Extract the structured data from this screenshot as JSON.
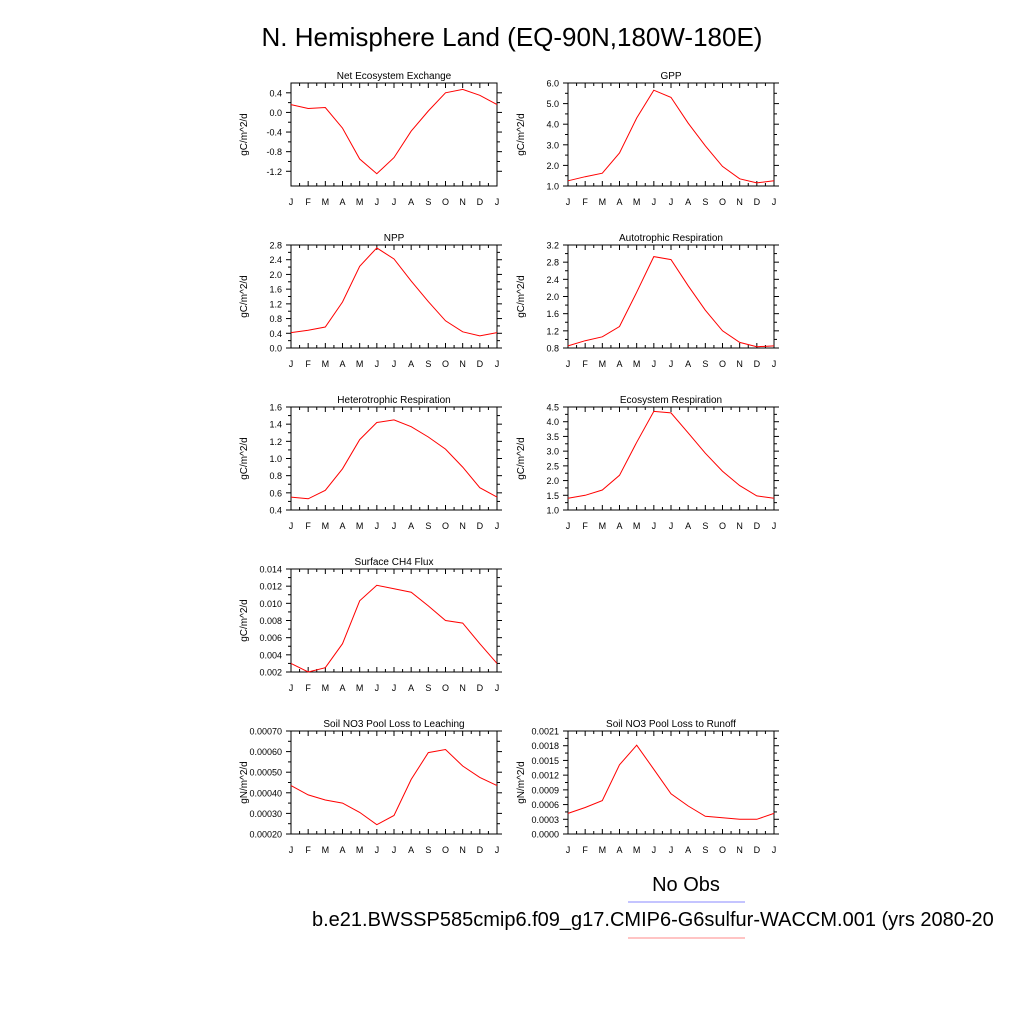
{
  "figure": {
    "title": "N. Hemisphere Land (EQ-90N,180W-180E)",
    "legend_obs_label": "No Obs",
    "legend_obs_color": "#8888ff",
    "legend_case_label": "b.e21.BWSSP585cmip6.f09_g17.CMIP6-G6sulfur-WACCM.001 (yrs 2080-20",
    "legend_case_color": "#ff8888",
    "line_color": "#ff0000"
  },
  "chart_data": [
    {
      "type": "line",
      "title": "Net Ecosystem Exchange",
      "ylabel": "gC/m^2/d",
      "x": [
        "J",
        "F",
        "M",
        "A",
        "M",
        "J",
        "J",
        "A",
        "S",
        "O",
        "N",
        "D",
        "J"
      ],
      "ylim": [
        -1.5,
        0.6
      ],
      "yticks": [
        -1.2,
        -0.8,
        -0.4,
        0.0,
        0.4
      ],
      "ytick_labels": [
        "-1.2",
        "-0.8",
        "-0.4",
        "0.0",
        "0.4"
      ],
      "values": [
        0.16,
        0.08,
        0.1,
        -0.32,
        -0.95,
        -1.25,
        -0.92,
        -0.38,
        0.03,
        0.4,
        0.47,
        0.35,
        0.16
      ]
    },
    {
      "type": "line",
      "title": "GPP",
      "ylabel": "gC/m^2/d",
      "x": [
        "J",
        "F",
        "M",
        "A",
        "M",
        "J",
        "J",
        "A",
        "S",
        "O",
        "N",
        "D",
        "J"
      ],
      "ylim": [
        1.0,
        6.0
      ],
      "yticks": [
        1.0,
        2.0,
        3.0,
        4.0,
        5.0,
        6.0
      ],
      "ytick_labels": [
        "1.0",
        "2.0",
        "3.0",
        "4.0",
        "5.0",
        "6.0"
      ],
      "values": [
        1.25,
        1.45,
        1.62,
        2.6,
        4.3,
        5.65,
        5.3,
        4.05,
        2.95,
        1.95,
        1.35,
        1.15,
        1.25
      ]
    },
    {
      "type": "line",
      "title": "NPP",
      "ylabel": "gC/m^2/d",
      "x": [
        "J",
        "F",
        "M",
        "A",
        "M",
        "J",
        "J",
        "A",
        "S",
        "O",
        "N",
        "D",
        "J"
      ],
      "ylim": [
        0.0,
        2.8
      ],
      "yticks": [
        0.0,
        0.4,
        0.8,
        1.2,
        1.6,
        2.0,
        2.4,
        2.8
      ],
      "ytick_labels": [
        "0.0",
        "0.4",
        "0.8",
        "1.2",
        "1.6",
        "2.0",
        "2.4",
        "2.8"
      ],
      "values": [
        0.42,
        0.48,
        0.57,
        1.25,
        2.22,
        2.72,
        2.42,
        1.82,
        1.26,
        0.74,
        0.44,
        0.33,
        0.42
      ]
    },
    {
      "type": "line",
      "title": "Autotrophic Respiration",
      "ylabel": "gC/m^2/d",
      "x": [
        "J",
        "F",
        "M",
        "A",
        "M",
        "J",
        "J",
        "A",
        "S",
        "O",
        "N",
        "D",
        "J"
      ],
      "ylim": [
        0.8,
        3.2
      ],
      "yticks": [
        0.8,
        1.2,
        1.6,
        2.0,
        2.4,
        2.8,
        3.2
      ],
      "ytick_labels": [
        "0.8",
        "1.2",
        "1.6",
        "2.0",
        "2.4",
        "2.8",
        "3.2"
      ],
      "values": [
        0.85,
        0.97,
        1.06,
        1.3,
        2.1,
        2.93,
        2.86,
        2.25,
        1.68,
        1.2,
        0.93,
        0.83,
        0.85
      ]
    },
    {
      "type": "line",
      "title": "Heterotrophic Respiration",
      "ylabel": "gC/m^2/d",
      "x": [
        "J",
        "F",
        "M",
        "A",
        "M",
        "J",
        "J",
        "A",
        "S",
        "O",
        "N",
        "D",
        "J"
      ],
      "ylim": [
        0.4,
        1.6
      ],
      "yticks": [
        0.4,
        0.6,
        0.8,
        1.0,
        1.2,
        1.4,
        1.6
      ],
      "ytick_labels": [
        "0.4",
        "0.6",
        "0.8",
        "1.0",
        "1.2",
        "1.4",
        "1.6"
      ],
      "values": [
        0.55,
        0.53,
        0.63,
        0.88,
        1.22,
        1.42,
        1.45,
        1.37,
        1.25,
        1.11,
        0.9,
        0.66,
        0.55
      ]
    },
    {
      "type": "line",
      "title": "Ecosystem Respiration",
      "ylabel": "gC/m^2/d",
      "x": [
        "J",
        "F",
        "M",
        "A",
        "M",
        "J",
        "J",
        "A",
        "S",
        "O",
        "N",
        "D",
        "J"
      ],
      "ylim": [
        1.0,
        4.5
      ],
      "yticks": [
        1.0,
        1.5,
        2.0,
        2.5,
        3.0,
        3.5,
        4.0,
        4.5
      ],
      "ytick_labels": [
        "1.0",
        "1.5",
        "2.0",
        "2.5",
        "3.0",
        "3.5",
        "4.0",
        "4.5"
      ],
      "values": [
        1.4,
        1.5,
        1.68,
        2.18,
        3.3,
        4.35,
        4.3,
        3.62,
        2.93,
        2.32,
        1.83,
        1.48,
        1.4
      ]
    },
    {
      "type": "line",
      "title": "Surface CH4 Flux",
      "ylabel": "gC/m^2/d",
      "x": [
        "J",
        "F",
        "M",
        "A",
        "M",
        "J",
        "J",
        "A",
        "S",
        "O",
        "N",
        "D",
        "J"
      ],
      "ylim": [
        0.002,
        0.014
      ],
      "yticks": [
        0.002,
        0.004,
        0.006,
        0.008,
        0.01,
        0.012,
        0.014
      ],
      "ytick_labels": [
        "0.002",
        "0.004",
        "0.006",
        "0.008",
        "0.010",
        "0.012",
        "0.014"
      ],
      "values": [
        0.003,
        0.002,
        0.0025,
        0.0053,
        0.0103,
        0.0121,
        0.0117,
        0.0113,
        0.0097,
        0.008,
        0.0077,
        0.0053,
        0.003
      ]
    },
    {
      "type": "line",
      "title": "Soil NO3 Pool Loss to Leaching",
      "ylabel": "gN/m^2/d",
      "x": [
        "J",
        "F",
        "M",
        "A",
        "M",
        "J",
        "J",
        "A",
        "S",
        "O",
        "N",
        "D",
        "J"
      ],
      "ylim": [
        0.0002,
        0.0007
      ],
      "yticks": [
        0.0002,
        0.0003,
        0.0004,
        0.0005,
        0.0006,
        0.0007
      ],
      "ytick_labels": [
        "0.00020",
        "0.00030",
        "0.00040",
        "0.00050",
        "0.00060",
        "0.00070"
      ],
      "values": [
        0.000435,
        0.00039,
        0.000365,
        0.00035,
        0.000305,
        0.000245,
        0.00029,
        0.000465,
        0.000595,
        0.00061,
        0.00053,
        0.000475,
        0.000435
      ]
    },
    {
      "type": "line",
      "title": "Soil NO3 Pool Loss to Runoff",
      "ylabel": "gN/m^2/d",
      "x": [
        "J",
        "F",
        "M",
        "A",
        "M",
        "J",
        "J",
        "A",
        "S",
        "O",
        "N",
        "D",
        "J"
      ],
      "ylim": [
        0.0,
        0.0021
      ],
      "yticks": [
        0.0,
        0.0003,
        0.0006,
        0.0009,
        0.0012,
        0.0015,
        0.0018,
        0.0021
      ],
      "ytick_labels": [
        "0.0000",
        "0.0003",
        "0.0006",
        "0.0009",
        "0.0012",
        "0.0015",
        "0.0018",
        "0.0021"
      ],
      "values": [
        0.00042,
        0.00054,
        0.00068,
        0.00141,
        0.00181,
        0.00132,
        0.00082,
        0.00057,
        0.00036,
        0.00033,
        0.0003,
        0.0003,
        0.00042
      ]
    }
  ]
}
